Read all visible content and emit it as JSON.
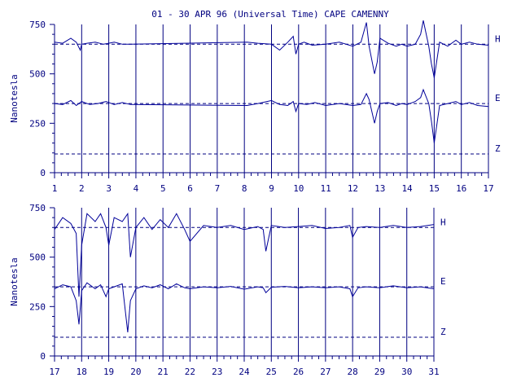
{
  "chart_data": [
    {
      "type": "line",
      "title": "01 - 30 APR 96 (Universal Time) CAPE CAMENNY",
      "ylabel": "Nanotesla",
      "xlim": [
        1,
        17
      ],
      "ylim": [
        0,
        750
      ],
      "yticks": [
        0,
        250,
        500,
        750
      ],
      "xticks": [
        1,
        2,
        3,
        4,
        5,
        6,
        7,
        8,
        9,
        10,
        11,
        12,
        13,
        14,
        15,
        16,
        17
      ],
      "baselines": [
        {
          "name": "H",
          "value": 650
        },
        {
          "name": "E",
          "value": 350
        },
        {
          "name": "Z",
          "value": 95
        }
      ],
      "colors": {
        "axis": "#000080",
        "trace": "#000099"
      },
      "series": [
        {
          "name": "H",
          "x": [
            1.0,
            1.3,
            1.6,
            1.8,
            1.95,
            2.0,
            2.2,
            2.5,
            2.8,
            3.0,
            3.2,
            3.5,
            3.8,
            8.1,
            8.5,
            9.0,
            9.3,
            9.6,
            9.8,
            9.9,
            10.0,
            10.2,
            10.5,
            11.0,
            11.5,
            12.0,
            12.3,
            12.5,
            12.6,
            12.8,
            12.9,
            13.0,
            13.3,
            13.6,
            13.8,
            14.0,
            14.3,
            14.5,
            14.6,
            14.8,
            14.9,
            15.0,
            15.2,
            15.5,
            15.8,
            16.0,
            16.3,
            16.6,
            17.0
          ],
          "y": [
            660,
            655,
            680,
            660,
            620,
            650,
            655,
            660,
            650,
            655,
            660,
            650,
            650,
            660,
            655,
            650,
            620,
            660,
            690,
            600,
            650,
            660,
            645,
            650,
            660,
            640,
            660,
            760,
            640,
            500,
            560,
            680,
            655,
            640,
            650,
            640,
            650,
            700,
            770,
            640,
            550,
            480,
            660,
            640,
            670,
            650,
            660,
            650,
            645
          ]
        },
        {
          "name": "E",
          "x": [
            1.0,
            1.3,
            1.6,
            1.8,
            2.0,
            2.3,
            2.6,
            2.9,
            3.2,
            3.5,
            3.8,
            8.1,
            8.5,
            9.0,
            9.3,
            9.6,
            9.8,
            9.9,
            10.0,
            10.3,
            10.6,
            11.0,
            11.5,
            12.0,
            12.3,
            12.5,
            12.6,
            12.8,
            12.9,
            13.0,
            13.3,
            13.6,
            13.8,
            14.0,
            14.3,
            14.5,
            14.6,
            14.8,
            14.9,
            15.0,
            15.2,
            15.5,
            15.8,
            16.0,
            16.3,
            16.6,
            17.0
          ],
          "y": [
            350,
            345,
            365,
            340,
            360,
            345,
            350,
            360,
            345,
            355,
            345,
            340,
            350,
            365,
            345,
            340,
            360,
            310,
            350,
            345,
            355,
            340,
            350,
            340,
            345,
            400,
            370,
            250,
            310,
            350,
            355,
            340,
            350,
            345,
            360,
            380,
            420,
            350,
            260,
            150,
            340,
            350,
            360,
            345,
            355,
            340,
            335
          ]
        }
      ]
    },
    {
      "type": "line",
      "ylabel": "Nanotesla",
      "xlim": [
        17,
        31
      ],
      "ylim": [
        0,
        750
      ],
      "yticks": [
        0,
        250,
        500,
        750
      ],
      "xticks": [
        17,
        18,
        19,
        20,
        21,
        22,
        23,
        24,
        25,
        26,
        27,
        28,
        29,
        30,
        31
      ],
      "baselines": [
        {
          "name": "H",
          "value": 650
        },
        {
          "name": "E",
          "value": 350
        },
        {
          "name": "Z",
          "value": 95
        }
      ],
      "colors": {
        "axis": "#000080",
        "trace": "#000099"
      },
      "series": [
        {
          "name": "H",
          "x": [
            17.0,
            17.3,
            17.6,
            17.8,
            17.9,
            18.0,
            18.2,
            18.5,
            18.7,
            18.9,
            19.0,
            19.2,
            19.5,
            19.7,
            19.8,
            20.0,
            20.3,
            20.6,
            20.9,
            21.2,
            21.5,
            21.8,
            22.0,
            22.5,
            23.0,
            23.5,
            24.0,
            24.5,
            24.7,
            24.8,
            25.0,
            25.5,
            26.0,
            26.5,
            27.0,
            27.5,
            27.9,
            28.0,
            28.2,
            28.5,
            29.0,
            29.5,
            30.0,
            30.5,
            31.0
          ],
          "y": [
            640,
            700,
            670,
            620,
            300,
            560,
            720,
            680,
            720,
            650,
            560,
            700,
            680,
            720,
            500,
            650,
            700,
            640,
            690,
            650,
            720,
            640,
            580,
            660,
            650,
            660,
            640,
            655,
            640,
            530,
            660,
            650,
            655,
            660,
            645,
            650,
            660,
            600,
            650,
            655,
            650,
            660,
            650,
            655,
            665
          ]
        },
        {
          "name": "E",
          "x": [
            17.0,
            17.3,
            17.6,
            17.8,
            17.9,
            18.0,
            18.2,
            18.5,
            18.7,
            18.9,
            19.0,
            19.2,
            19.5,
            19.7,
            19.8,
            20.0,
            20.3,
            20.6,
            20.9,
            21.2,
            21.5,
            21.8,
            22.0,
            22.5,
            23.0,
            23.5,
            24.0,
            24.5,
            24.7,
            24.8,
            25.0,
            25.5,
            26.0,
            26.5,
            27.0,
            27.5,
            27.9,
            28.0,
            28.2,
            28.5,
            29.0,
            29.5,
            30.0,
            30.5,
            31.0
          ],
          "y": [
            340,
            360,
            350,
            280,
            160,
            330,
            370,
            340,
            360,
            300,
            340,
            350,
            365,
            120,
            280,
            340,
            355,
            345,
            360,
            340,
            365,
            345,
            340,
            350,
            345,
            352,
            338,
            350,
            345,
            320,
            348,
            352,
            345,
            350,
            345,
            350,
            340,
            300,
            345,
            350,
            345,
            355,
            345,
            350,
            340
          ]
        }
      ]
    }
  ]
}
